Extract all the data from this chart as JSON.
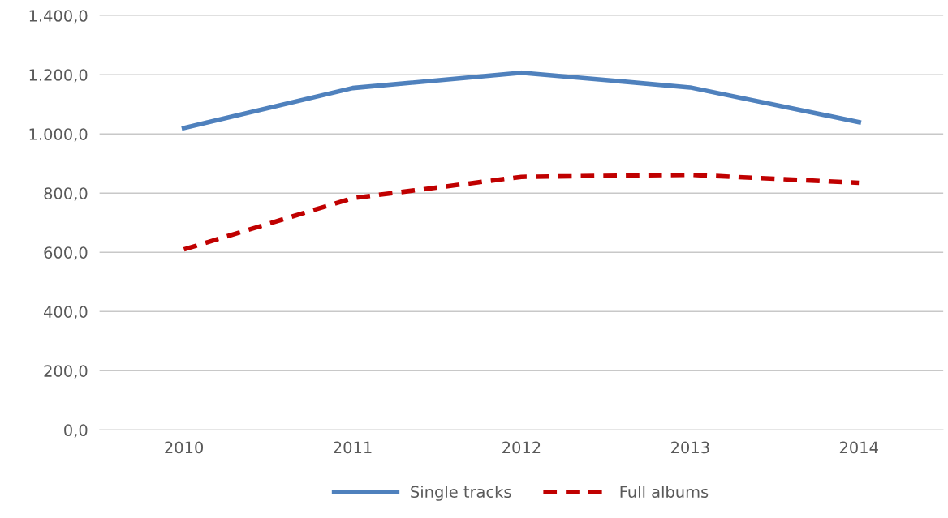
{
  "chart_data": {
    "type": "line",
    "categories": [
      "2010",
      "2011",
      "2012",
      "2013",
      "2014"
    ],
    "series": [
      {
        "name": "Single tracks",
        "color": "#4f81bd",
        "line_style": "solid",
        "values": [
          1020,
          1155,
          1207,
          1157,
          1040
        ]
      },
      {
        "name": "Full albums",
        "color": "#c00000",
        "line_style": "dashed",
        "values": [
          610,
          783,
          855,
          862,
          835
        ]
      }
    ],
    "ylim": [
      0,
      1400
    ],
    "yticks": [
      {
        "value": 0,
        "label": "0,0"
      },
      {
        "value": 200,
        "label": "200,0"
      },
      {
        "value": 400,
        "label": "400,0"
      },
      {
        "value": 600,
        "label": "600,0"
      },
      {
        "value": 800,
        "label": "800,0"
      },
      {
        "value": 1000,
        "label": "1.000,0"
      },
      {
        "value": 1200,
        "label": "1.200,0"
      },
      {
        "value": 1400,
        "label": "1.400,0"
      }
    ],
    "grid": "y",
    "legend": "bottom",
    "marker": "none"
  }
}
